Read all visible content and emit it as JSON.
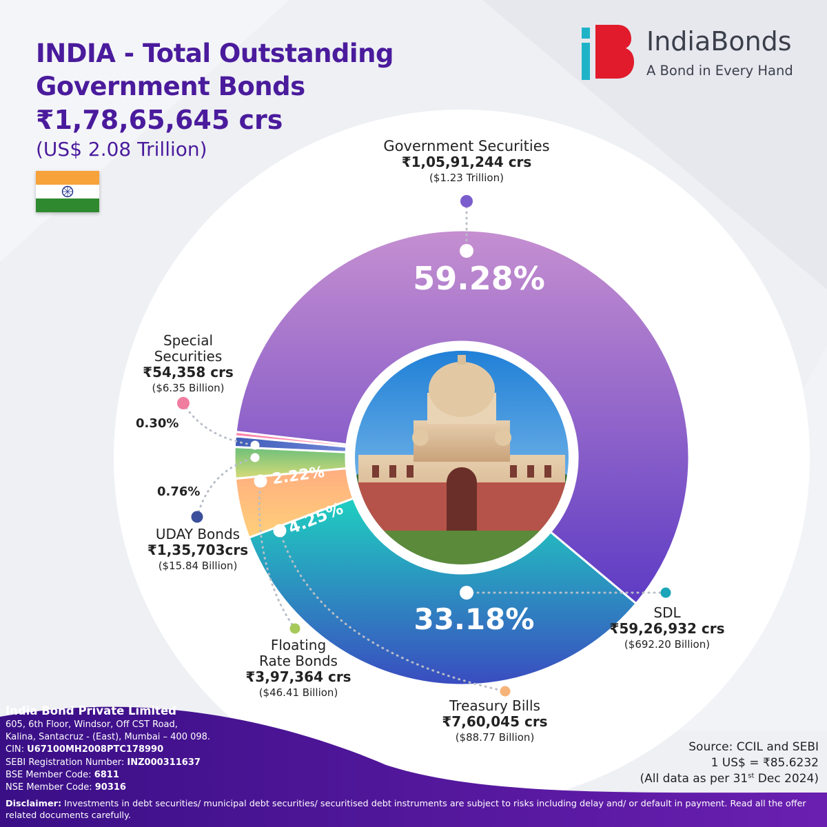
{
  "header": {
    "title_line1": "INDIA - Total Outstanding",
    "title_line2": "Government Bonds",
    "total": "₹1,78,65,645 crs",
    "total_usd": "(US$ 2.08 Trillion)"
  },
  "logo": {
    "name": "IndiaBonds",
    "tagline": "A Bond in Every Hand"
  },
  "colors": {
    "title": "#4a1b9c",
    "government_securities": "#8a5ad0",
    "sdl": "#1aa6b8",
    "treasury_bills": "#f5a06a",
    "floating_rate_bonds": "#8cc56e",
    "uday_bonds": "#4b6bc0",
    "special_securities": "#f07ca0",
    "footer": "#4a1590"
  },
  "chart_data": {
    "type": "pie",
    "variant": "donut",
    "center_image": "north-block-building",
    "series": [
      {
        "key": "government_securities",
        "name": "Government Securities",
        "percent": 59.28,
        "percent_label": "59.28%",
        "value_crs": 10591244,
        "value_label": "₹1,05,91,244 crs",
        "usd_label": "($1.23 Trillion)"
      },
      {
        "key": "sdl",
        "name": "SDL",
        "percent": 33.18,
        "percent_label": "33.18%",
        "value_crs": 5926932,
        "value_label": "₹59,26,932 crs",
        "usd_label": "($692.20 Billion)"
      },
      {
        "key": "treasury_bills",
        "name": "Treasury Bills",
        "percent": 4.25,
        "percent_label": "4.25%",
        "value_crs": 760045,
        "value_label": "₹7,60,045 crs",
        "usd_label": "($88.77 Billion)"
      },
      {
        "key": "floating_rate_bonds",
        "name": "Floating Rate Bonds",
        "name_lines": [
          "Floating",
          "Rate Bonds"
        ],
        "percent": 2.22,
        "percent_label": "2.22%",
        "value_crs": 397364,
        "value_label": "₹3,97,364 crs",
        "usd_label": "($46.41 Billion)"
      },
      {
        "key": "uday_bonds",
        "name": "UDAY Bonds",
        "percent": 0.76,
        "percent_label": "0.76%",
        "value_crs": 135703,
        "value_label": "₹1,35,703crs",
        "usd_label": "($15.84 Billion)"
      },
      {
        "key": "special_securities",
        "name": "Special Securities",
        "name_lines": [
          "Special",
          "Securities"
        ],
        "percent": 0.3,
        "percent_label": "0.30%",
        "value_crs": 54358,
        "value_label": "₹54,358 crs",
        "usd_label": "($6.35 Billion)"
      }
    ]
  },
  "source": {
    "line1": "Source: CCIL and SEBI",
    "line2": "1 US$ = ₹85.6232",
    "line3_prefix": "(All data as per 31",
    "line3_sup": "st",
    "line3_suffix": " Dec 2024)"
  },
  "company": {
    "name": "India Bond Private Limited",
    "address_line1": "605, 6th Floor, Windsor, Off CST Road,",
    "address_line2": "Kalina, Santacruz - (East), Mumbai – 400 098.",
    "cin_label": "CIN: ",
    "cin_value": "U67100MH2008PTC178990",
    "sebi_label": "SEBI Registration Number: ",
    "sebi_value": "INZ000311637",
    "bse_label": "BSE Member Code: ",
    "bse_value": "6811",
    "nse_label": "NSE Member Code: ",
    "nse_value": "90316"
  },
  "disclaimer": {
    "label": "Disclaimer:",
    "text": " Investments in debt securities/ municipal debt securities/ securitised debt instruments are subject to risks including delay and/ or default in payment. Read all the offer related documents carefully."
  }
}
